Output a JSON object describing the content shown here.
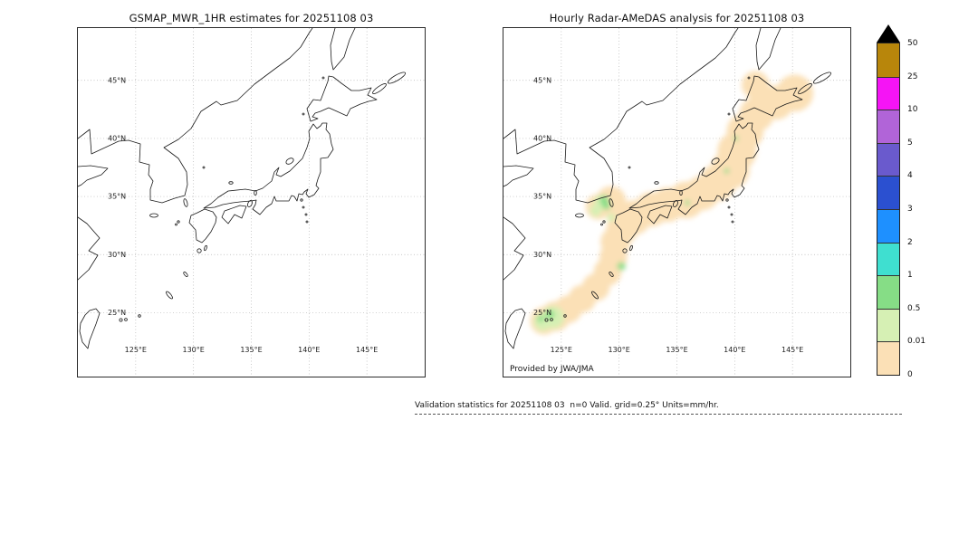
{
  "figure": {
    "panels": [
      {
        "id": "left",
        "title": "GSMAP_MWR_1HR estimates for 20251108 03"
      },
      {
        "id": "right",
        "title": "Hourly Radar-AMeDAS analysis for 20251108 03",
        "credit": "Provided by JWA/JMA"
      }
    ],
    "footer": {
      "text": "Validation statistics for 20251108 03  n=0 Valid. grid=0.25° Units=mm/hr."
    }
  },
  "axes": {
    "lat_ticks": [
      "45°N",
      "40°N",
      "35°N",
      "30°N",
      "25°N"
    ],
    "lon_ticks": [
      "125°E",
      "130°E",
      "135°E",
      "140°E",
      "145°E"
    ]
  },
  "colorbar": {
    "units": "mm/hr",
    "over_color": "#000000",
    "tick_labels_top_to_bottom": [
      "50",
      "25",
      "10",
      "5",
      "4",
      "3",
      "2",
      "1",
      "0.5",
      "0.01",
      "0"
    ],
    "segments_top_to_bottom": [
      {
        "label": "25-50",
        "color": "#b8860b"
      },
      {
        "label": "10-25",
        "color": "#f514f5"
      },
      {
        "label": "5-10",
        "color": "#b164d8"
      },
      {
        "label": "4-5",
        "color": "#6a5acd"
      },
      {
        "label": "3-4",
        "color": "#2b50d0"
      },
      {
        "label": "2-3",
        "color": "#1e90ff"
      },
      {
        "label": "1-2",
        "color": "#3fdfd0"
      },
      {
        "label": "0.5-1",
        "color": "#86dd86"
      },
      {
        "label": "0.01-0.5",
        "color": "#d6f0b4"
      },
      {
        "label": "0-0.01",
        "color": "#fbe0b6"
      }
    ]
  },
  "chart_data": {
    "type": "heatmap",
    "subtype": "geographic-precipitation-validation-maps",
    "units": "mm/hr",
    "grid_resolution_deg": 0.25,
    "n_valid": 0,
    "extent": {
      "lon_min": 120,
      "lon_max": 150,
      "lat_min": 19.5,
      "lat_max": 49.5
    },
    "lon_gridlines": [
      125,
      130,
      135,
      140,
      145
    ],
    "lat_gridlines": [
      45,
      40,
      35,
      30,
      25
    ],
    "color_levels_mm_hr": [
      0,
      0.01,
      0.5,
      1,
      2,
      3,
      4,
      5,
      10,
      25,
      50
    ],
    "panels": [
      {
        "title": "GSMAP_MWR_1HR estimates for 20251108 03",
        "precip_regions": []
      },
      {
        "title": "Hourly Radar-AMeDAS analysis for 20251108 03",
        "precip_regions": [
          {
            "lon": 145.2,
            "lat": 43.9,
            "r": 1.6,
            "v": 0.005
          },
          {
            "lon": 143.6,
            "lat": 43.1,
            "r": 1.5,
            "v": 0.005
          },
          {
            "lon": 141.9,
            "lat": 42.1,
            "r": 1.5,
            "v": 0.005
          },
          {
            "lon": 141.8,
            "lat": 44.6,
            "r": 1.2,
            "v": 0.005
          },
          {
            "lon": 140.9,
            "lat": 40.6,
            "r": 1.6,
            "v": 0.005
          },
          {
            "lon": 140.2,
            "lat": 38.9,
            "r": 1.7,
            "v": 0.005
          },
          {
            "lon": 139.6,
            "lat": 37.3,
            "r": 1.7,
            "v": 0.005
          },
          {
            "lon": 138.5,
            "lat": 36.2,
            "r": 1.6,
            "v": 0.005
          },
          {
            "lon": 137.2,
            "lat": 35.3,
            "r": 1.5,
            "v": 0.005
          },
          {
            "lon": 135.8,
            "lat": 34.7,
            "r": 1.6,
            "v": 0.005
          },
          {
            "lon": 134.2,
            "lat": 34.3,
            "r": 1.5,
            "v": 0.005
          },
          {
            "lon": 132.8,
            "lat": 33.9,
            "r": 1.5,
            "v": 0.005
          },
          {
            "lon": 131.3,
            "lat": 33.2,
            "r": 1.5,
            "v": 0.005
          },
          {
            "lon": 130.3,
            "lat": 32.3,
            "r": 1.4,
            "v": 0.005
          },
          {
            "lon": 129.7,
            "lat": 31.1,
            "r": 1.3,
            "v": 0.005
          },
          {
            "lon": 129.5,
            "lat": 29.8,
            "r": 1.2,
            "v": 0.005
          },
          {
            "lon": 129.0,
            "lat": 28.5,
            "r": 1.2,
            "v": 0.005
          },
          {
            "lon": 128.0,
            "lat": 27.2,
            "r": 1.2,
            "v": 0.005
          },
          {
            "lon": 126.8,
            "lat": 26.2,
            "r": 1.2,
            "v": 0.005
          },
          {
            "lon": 125.6,
            "lat": 25.3,
            "r": 1.2,
            "v": 0.005
          },
          {
            "lon": 124.5,
            "lat": 24.7,
            "r": 1.3,
            "v": 0.005
          },
          {
            "lon": 123.5,
            "lat": 24.3,
            "r": 1.2,
            "v": 0.005
          },
          {
            "lon": 129.3,
            "lat": 34.6,
            "r": 1.3,
            "v": 0.005
          },
          {
            "lon": 128.2,
            "lat": 34.1,
            "r": 1.1,
            "v": 0.005
          },
          {
            "lon": 128.4,
            "lat": 34.5,
            "r": 0.55,
            "v": 0.1
          },
          {
            "lon": 128.0,
            "lat": 33.8,
            "r": 0.5,
            "v": 0.1
          },
          {
            "lon": 129.3,
            "lat": 33.2,
            "r": 0.35,
            "v": 0.1
          },
          {
            "lon": 124.3,
            "lat": 24.6,
            "r": 0.95,
            "v": 0.1
          },
          {
            "lon": 123.4,
            "lat": 24.2,
            "r": 0.75,
            "v": 0.1
          },
          {
            "lon": 128.7,
            "lat": 34.7,
            "r": 0.4,
            "v": 0.7
          },
          {
            "lon": 128.9,
            "lat": 34.2,
            "r": 0.35,
            "v": 0.7
          },
          {
            "lon": 130.2,
            "lat": 29.0,
            "r": 0.35,
            "v": 0.7
          },
          {
            "lon": 124.0,
            "lat": 24.85,
            "r": 0.4,
            "v": 0.7
          },
          {
            "lon": 123.2,
            "lat": 24.5,
            "r": 0.3,
            "v": 0.7
          },
          {
            "lon": 135.9,
            "lat": 34.45,
            "r": 0.22,
            "v": 0.7
          },
          {
            "lon": 139.3,
            "lat": 37.2,
            "r": 0.22,
            "v": 0.7
          },
          {
            "lon": 140.1,
            "lat": 40.0,
            "r": 0.2,
            "v": 0.7
          }
        ]
      }
    ]
  }
}
